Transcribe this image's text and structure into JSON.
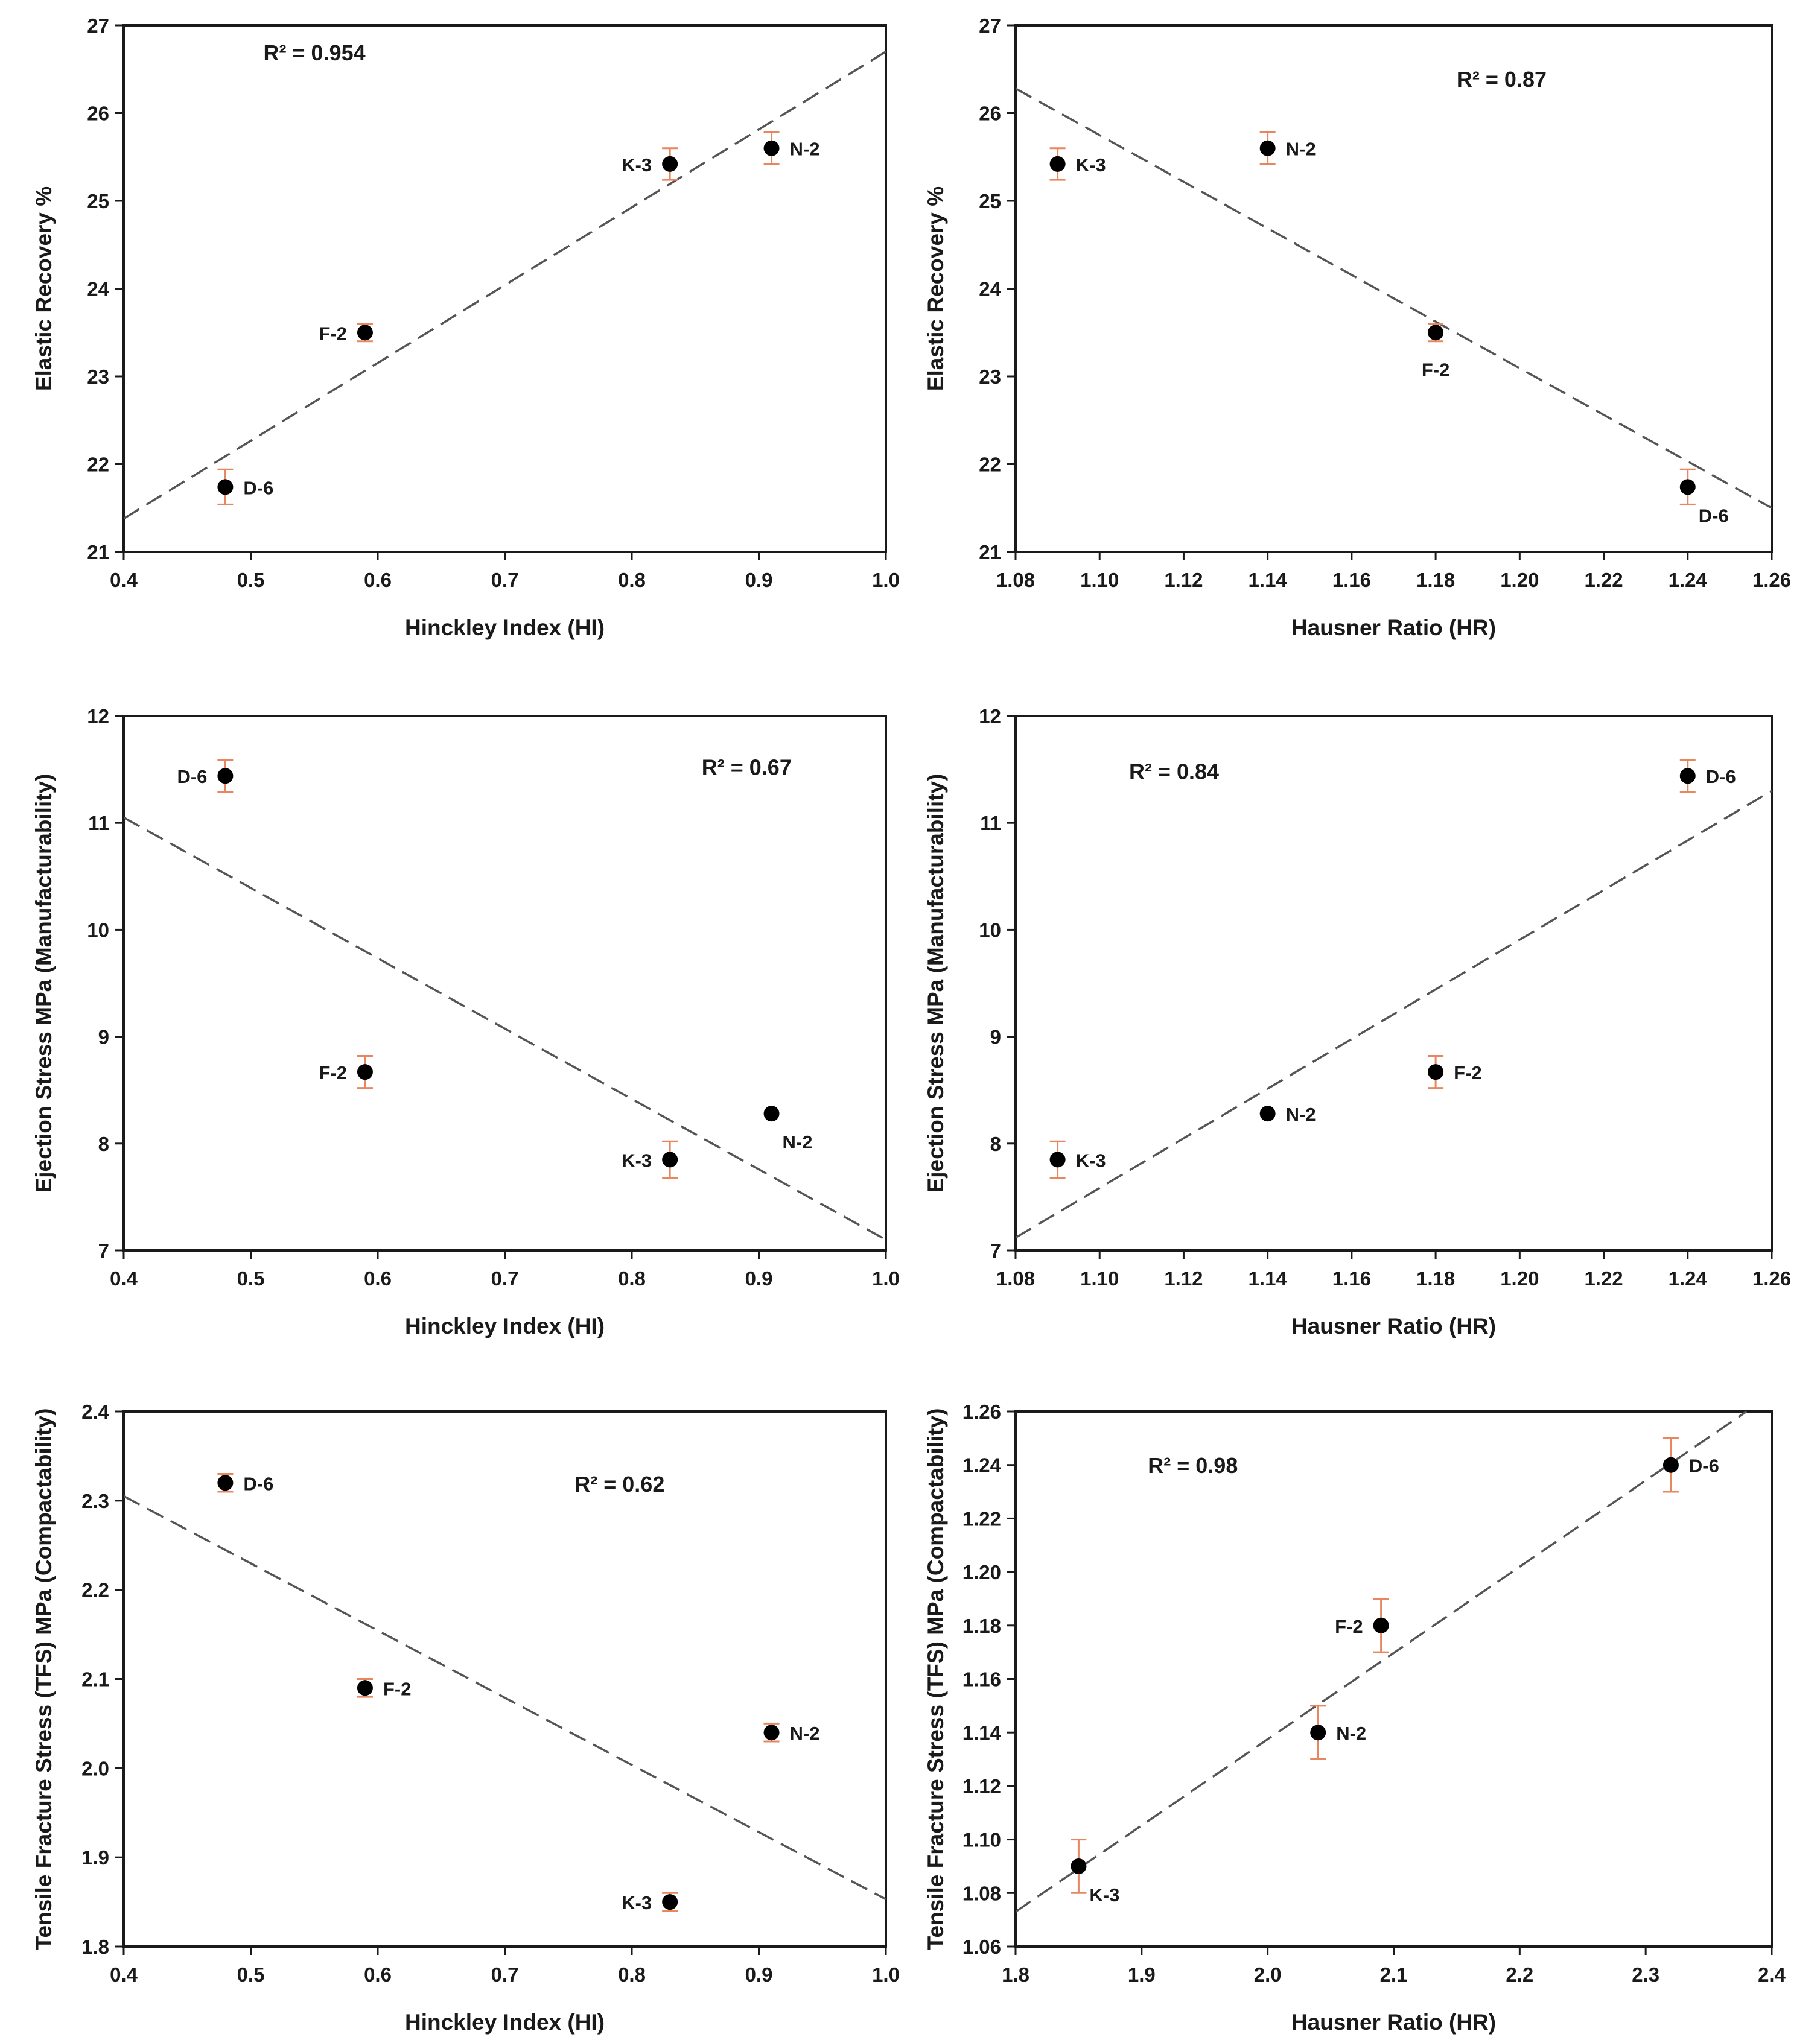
{
  "colors": {
    "axis": "#1a1a1a",
    "point": "#000000",
    "error_bar": "#e8875f",
    "fit_line": "#555555"
  },
  "chart_data": [
    {
      "type": "scatter",
      "xlabel": "Hinckley Index (HI)",
      "ylabel": "Elastic Recovery %",
      "xlim": [
        0.4,
        1.0
      ],
      "ylim": [
        21,
        27
      ],
      "xticks": [
        "0.4",
        "0.5",
        "0.6",
        "0.7",
        "0.8",
        "0.9",
        "1.0"
      ],
      "yticks": [
        "21",
        "22",
        "23",
        "24",
        "25",
        "26",
        "27"
      ],
      "r2_text": "R² = 0.954",
      "r2_anchor": [
        0.51,
        26.6
      ],
      "fit_line": [
        [
          0.4,
          21.38
        ],
        [
          1.0,
          26.7
        ]
      ],
      "points": [
        {
          "label": "D-6",
          "x": 0.48,
          "y": 21.74,
          "err": 0.2,
          "label_side": "right"
        },
        {
          "label": "F-2",
          "x": 0.59,
          "y": 23.5,
          "err": 0.1,
          "label_side": "left"
        },
        {
          "label": "K-3",
          "x": 0.83,
          "y": 25.42,
          "err": 0.18,
          "label_side": "left"
        },
        {
          "label": "N-2",
          "x": 0.91,
          "y": 25.6,
          "err": 0.18,
          "label_side": "right"
        }
      ]
    },
    {
      "type": "scatter",
      "xlabel": "Hausner Ratio (HR)",
      "ylabel": "Elastic Recovery %",
      "xlim": [
        1.08,
        1.26
      ],
      "ylim": [
        21,
        27
      ],
      "xticks": [
        "1.08",
        "1.10",
        "1.12",
        "1.14",
        "1.16",
        "1.18",
        "1.20",
        "1.22",
        "1.24",
        "1.26"
      ],
      "yticks": [
        "21",
        "22",
        "23",
        "24",
        "25",
        "26",
        "27"
      ],
      "r2_text": "R² = 0.87",
      "r2_anchor": [
        1.185,
        26.3
      ],
      "fit_line": [
        [
          1.08,
          26.28
        ],
        [
          1.26,
          21.5
        ]
      ],
      "points": [
        {
          "label": "K-3",
          "x": 1.09,
          "y": 25.42,
          "err": 0.18,
          "label_side": "right"
        },
        {
          "label": "N-2",
          "x": 1.14,
          "y": 25.6,
          "err": 0.18,
          "label_side": "right"
        },
        {
          "label": "F-2",
          "x": 1.18,
          "y": 23.5,
          "err": 0.1,
          "label_side": "below"
        },
        {
          "label": "D-6",
          "x": 1.24,
          "y": 21.74,
          "err": 0.2,
          "label_side": "below-right"
        }
      ]
    },
    {
      "type": "scatter",
      "xlabel": "Hinckley Index (HI)",
      "ylabel": "Ejection Stress MPa (Manufacturability)",
      "xlim": [
        0.4,
        1.0
      ],
      "ylim": [
        7,
        12
      ],
      "xticks": [
        "0.4",
        "0.5",
        "0.6",
        "0.7",
        "0.8",
        "0.9",
        "1.0"
      ],
      "yticks": [
        "7",
        "8",
        "9",
        "10",
        "11",
        "12"
      ],
      "r2_text": "R² = 0.67",
      "r2_anchor": [
        0.855,
        11.45
      ],
      "fit_line": [
        [
          0.4,
          11.05
        ],
        [
          1.0,
          7.1
        ]
      ],
      "points": [
        {
          "label": "D-6",
          "x": 0.48,
          "y": 11.44,
          "err": 0.15,
          "label_side": "left"
        },
        {
          "label": "F-2",
          "x": 0.59,
          "y": 8.67,
          "err": 0.15,
          "label_side": "left"
        },
        {
          "label": "K-3",
          "x": 0.83,
          "y": 7.85,
          "err": 0.17,
          "label_side": "left"
        },
        {
          "label": "N-2",
          "x": 0.91,
          "y": 8.28,
          "err": 0,
          "label_side": "below-right"
        }
      ]
    },
    {
      "type": "scatter",
      "xlabel": "Hausner Ratio (HR)",
      "ylabel": "Ejection Stress MPa (Manufacturability)",
      "xlim": [
        1.08,
        1.26
      ],
      "ylim": [
        7,
        12
      ],
      "xticks": [
        "1.08",
        "1.10",
        "1.12",
        "1.14",
        "1.16",
        "1.18",
        "1.20",
        "1.22",
        "1.24",
        "1.26"
      ],
      "yticks": [
        "7",
        "8",
        "9",
        "10",
        "11",
        "12"
      ],
      "r2_text": "R² = 0.84",
      "r2_anchor": [
        1.107,
        11.41
      ],
      "fit_line": [
        [
          1.08,
          7.12
        ],
        [
          1.26,
          11.3
        ]
      ],
      "points": [
        {
          "label": "K-3",
          "x": 1.09,
          "y": 7.85,
          "err": 0.17,
          "label_side": "right"
        },
        {
          "label": "N-2",
          "x": 1.14,
          "y": 8.28,
          "err": 0,
          "label_side": "right"
        },
        {
          "label": "F-2",
          "x": 1.18,
          "y": 8.67,
          "err": 0.15,
          "label_side": "right"
        },
        {
          "label": "D-6",
          "x": 1.24,
          "y": 11.44,
          "err": 0.15,
          "label_side": "right"
        }
      ]
    },
    {
      "type": "scatter",
      "xlabel": "Hinckley Index (HI)",
      "ylabel": "Tensile Fracture Stress (TFS) MPa  (Compactability)",
      "xlim": [
        0.4,
        1.0
      ],
      "ylim": [
        1.8,
        2.4
      ],
      "xticks": [
        "0.4",
        "0.5",
        "0.6",
        "0.7",
        "0.8",
        "0.9",
        "1.0"
      ],
      "yticks": [
        "1.8",
        "1.9",
        "2.0",
        "2.1",
        "2.2",
        "2.3",
        "2.4"
      ],
      "r2_text": "R² = 0.62",
      "r2_anchor": [
        0.755,
        2.31
      ],
      "fit_line": [
        [
          0.4,
          2.305
        ],
        [
          1.0,
          1.853
        ]
      ],
      "points": [
        {
          "label": "D-6",
          "x": 0.48,
          "y": 2.32,
          "err": 0.01,
          "label_side": "right"
        },
        {
          "label": "F-2",
          "x": 0.59,
          "y": 2.09,
          "err": 0.01,
          "label_side": "right"
        },
        {
          "label": "N-2",
          "x": 0.91,
          "y": 2.04,
          "err": 0.01,
          "label_side": "right"
        },
        {
          "label": "K-3",
          "x": 0.83,
          "y": 1.85,
          "err": 0.01,
          "label_side": "left"
        }
      ]
    },
    {
      "type": "scatter",
      "xlabel": "Hausner Ratio (HR)",
      "ylabel": "Tensile Fracture Stress (TFS) MPa  (Compactability)",
      "xlim": [
        1.8,
        2.4
      ],
      "ylim": [
        1.06,
        1.26
      ],
      "xticks": [
        "1.8",
        "1.9",
        "2.0",
        "2.1",
        "2.2",
        "2.3",
        "2.4"
      ],
      "yticks": [
        "1.06",
        "1.08",
        "1.10",
        "1.12",
        "1.14",
        "1.16",
        "1.18",
        "1.20",
        "1.22",
        "1.24",
        "1.26"
      ],
      "r2_text": "R² = 0.98",
      "r2_anchor": [
        1.905,
        1.237
      ],
      "fit_line": [
        [
          1.8,
          1.073
        ],
        [
          2.38,
          1.26
        ]
      ],
      "points": [
        {
          "label": "K-3",
          "x": 1.85,
          "y": 1.09,
          "err": 0.01,
          "label_side": "below-right"
        },
        {
          "label": "N-2",
          "x": 2.04,
          "y": 1.14,
          "err": 0.01,
          "label_side": "right"
        },
        {
          "label": "F-2",
          "x": 2.09,
          "y": 1.18,
          "err": 0.01,
          "label_side": "left"
        },
        {
          "label": "D-6",
          "x": 2.32,
          "y": 1.24,
          "err": 0.01,
          "label_side": "right"
        }
      ]
    }
  ]
}
